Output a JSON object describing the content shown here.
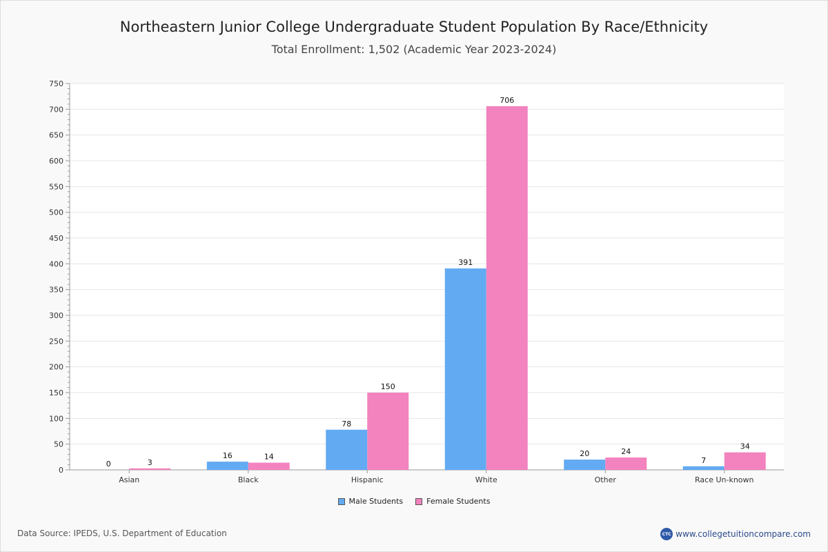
{
  "colors": {
    "male": "#62aaf2",
    "female": "#f283be",
    "grid": "#e6e6e6",
    "axis": "#999999"
  },
  "footer": {
    "source": "Data Source: IPEDS, U.S. Department of Education",
    "brand": "www.collegetuitioncompare.com",
    "logo_text": "CTC"
  },
  "chart_data": {
    "type": "bar",
    "title": "Northeastern Junior College Undergraduate Student Population By Race/Ethnicity",
    "subtitle": "Total Enrollment: 1,502 (Academic Year 2023-2024)",
    "categories": [
      "Asian",
      "Black",
      "Hispanic",
      "White",
      "Other",
      "Race Un-known"
    ],
    "series": [
      {
        "name": "Male Students",
        "values": [
          0,
          16,
          78,
          391,
          20,
          7
        ]
      },
      {
        "name": "Female Students",
        "values": [
          3,
          14,
          150,
          706,
          24,
          34
        ]
      }
    ],
    "ylim": [
      0,
      750
    ],
    "yticks": [
      0,
      50,
      100,
      150,
      200,
      250,
      300,
      350,
      400,
      450,
      500,
      550,
      600,
      650,
      700,
      750
    ],
    "xlabel": "",
    "ylabel": "",
    "grid": true,
    "legend_position": "bottom"
  }
}
